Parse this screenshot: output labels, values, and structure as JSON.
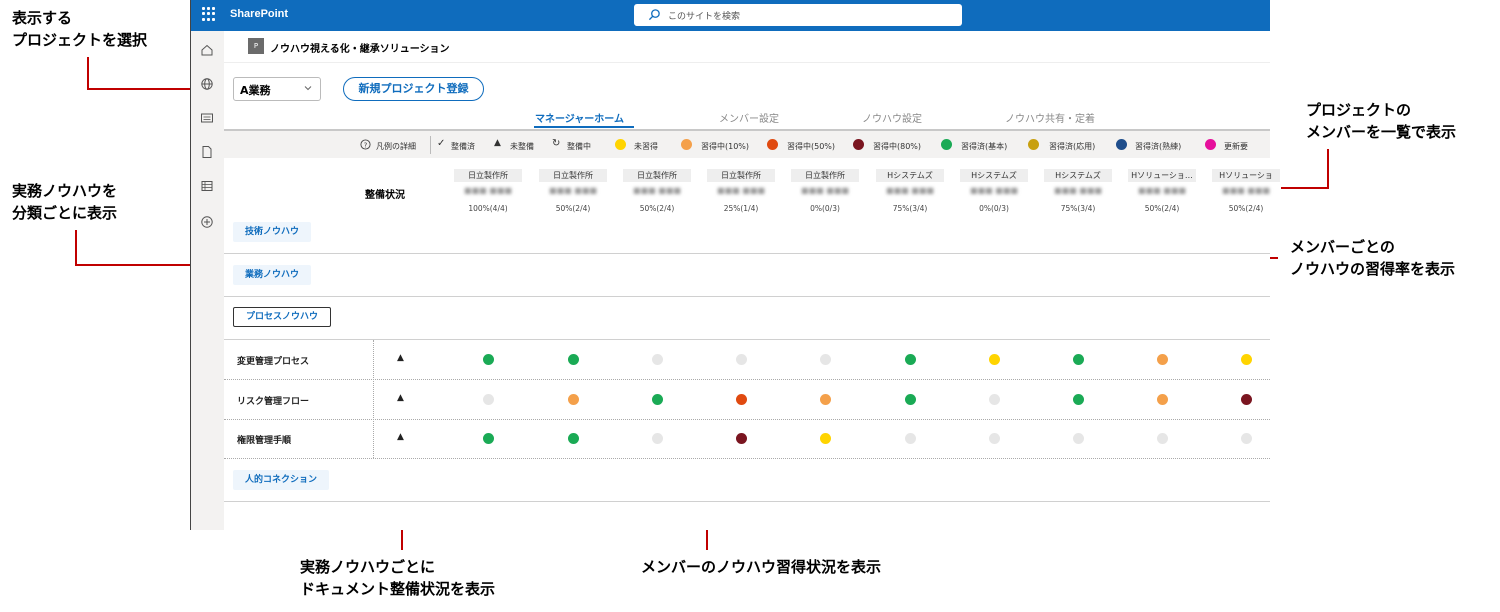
{
  "colors": {
    "suitebar": "#0f6cbd",
    "accent": "#0f6cbd",
    "annotation_line": "#c00000",
    "status": {
      "未習得": "#ffd400",
      "習得中(10%)": "#f4a04a",
      "習得中(50%)": "#e04a10",
      "習得中(80%)": "#7a1520",
      "習得済(基本)": "#1aaa55",
      "習得済(応用)": "#c8a010",
      "習得済(熟練)": "#1f4e8c",
      "更新要": "#e6109c",
      "未設定": "#e6e6e6"
    }
  },
  "annotations": {
    "select_project": "表示する\nプロジェクトを選択",
    "classify": "実務ノウハウを\n分類ごとに表示",
    "member_list": "プロジェクトの\nメンバーを一覧で表示",
    "member_rate": "メンバーごとの\nノウハウの習得率を表示",
    "doc_status": "実務ノウハウごとに\nドキュメント整備状況を表示",
    "acquisition": "メンバーのノウハウ習得状況を表示"
  },
  "suitebar": {
    "brand": "SharePoint",
    "search_placeholder": "このサイトを検索",
    "icons": [
      "waffle-icon",
      "search-icon"
    ]
  },
  "leftrail": {
    "icons": [
      "home-icon",
      "globe-icon",
      "news-icon",
      "document-icon",
      "list-icon",
      "add-icon"
    ]
  },
  "site": {
    "logo_letter": "P",
    "title": "ノウハウ視える化・継承ソリューション"
  },
  "toolbar": {
    "project_select_value": "A業務",
    "new_project_label": "新規プロジェクト登録"
  },
  "tabs": [
    {
      "label": "マネージャーホーム",
      "active": true
    },
    {
      "label": "メンバー設定",
      "active": false
    },
    {
      "label": "ノウハウ設定",
      "active": false
    },
    {
      "label": "ノウハウ共有・定着",
      "active": false
    }
  ],
  "legend": {
    "details_label": "凡例の詳細",
    "doc_ready": "整備済",
    "doc_missing": "未整備",
    "doc_in_progress": "整備中",
    "items": [
      {
        "label": "未習得",
        "color": "#ffd400"
      },
      {
        "label": "習得中(10%)",
        "color": "#f4a04a"
      },
      {
        "label": "習得中(50%)",
        "color": "#e04a10"
      },
      {
        "label": "習得中(80%)",
        "color": "#7a1520"
      },
      {
        "label": "習得済(基本)",
        "color": "#1aaa55"
      },
      {
        "label": "習得済(応用)",
        "color": "#c8a010"
      },
      {
        "label": "習得済(熟練)",
        "color": "#1f4e8c"
      },
      {
        "label": "更新要",
        "color": "#e6109c"
      }
    ]
  },
  "grid": {
    "status_header": "整備状況",
    "members": [
      {
        "company": "日立製作所",
        "name": "■■■ ■■■",
        "rate": "100%(4/4)"
      },
      {
        "company": "日立製作所",
        "name": "■■■ ■■■",
        "rate": "50%(2/4)"
      },
      {
        "company": "日立製作所",
        "name": "■■■ ■■■",
        "rate": "50%(2/4)"
      },
      {
        "company": "日立製作所",
        "name": "■■■ ■■■",
        "rate": "25%(1/4)"
      },
      {
        "company": "日立製作所",
        "name": "■■■ ■■■",
        "rate": "0%(0/3)"
      },
      {
        "company": "Hシステムズ",
        "name": "■■■ ■■■",
        "rate": "75%(3/4)"
      },
      {
        "company": "Hシステムズ",
        "name": "■■■ ■■■",
        "rate": "0%(0/3)"
      },
      {
        "company": "Hシステムズ",
        "name": "■■■ ■■■",
        "rate": "75%(3/4)"
      },
      {
        "company": "Hソリューショ…",
        "name": "■■■ ■■■",
        "rate": "50%(2/4)"
      },
      {
        "company": "Hソリューショ",
        "name": "■■■ ■■■",
        "rate": "50%(2/4)"
      }
    ],
    "categories": [
      {
        "label": "技術ノウハウ"
      },
      {
        "label": "業務ノウハウ"
      },
      {
        "label": "プロセスノウハウ",
        "selected": true
      },
      {
        "label": "人的コネクション"
      }
    ],
    "rows": [
      {
        "label": "変更管理プロセス",
        "doc_status": "▲",
        "cells": [
          "習得済(基本)",
          "習得済(基本)",
          "未設定",
          "未設定",
          "未設定",
          "習得済(基本)",
          "未習得",
          "習得済(基本)",
          "習得中(10%)",
          "未習得"
        ]
      },
      {
        "label": "リスク管理フロー",
        "doc_status": "▲",
        "cells": [
          "未設定",
          "習得中(10%)",
          "習得済(基本)",
          "習得中(50%)",
          "習得中(10%)",
          "習得済(基本)",
          "未設定",
          "習得済(基本)",
          "習得中(10%)",
          "習得中(80%)"
        ]
      },
      {
        "label": "権限管理手順",
        "doc_status": "▲",
        "cells": [
          "習得済(基本)",
          "習得済(基本)",
          "未設定",
          "習得中(80%)",
          "未習得",
          "未設定",
          "未設定",
          "未設定",
          "未設定",
          "未設定"
        ]
      }
    ]
  }
}
